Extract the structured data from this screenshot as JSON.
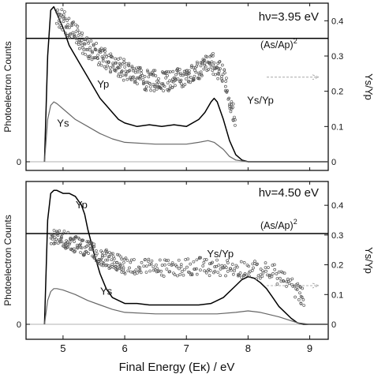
{
  "chart_data": [
    {
      "type": "scatter",
      "energy_annotation": "hν=3.95 eV",
      "ratio_label": "(As/Ap)",
      "ratio_exponent": "2",
      "ylabel_left": "Photoelectron Counts",
      "ylabel_right": "Ys/Yp",
      "xlim": [
        4.4,
        9.3
      ],
      "ylim_right": [
        0,
        0.45
      ],
      "right_ticks": [
        0,
        0.1,
        0.2,
        0.3,
        0.4
      ],
      "left_ticks": [
        "0"
      ],
      "horizontal_line_value": 0.35,
      "series": [
        {
          "name": "Yp",
          "label_at": [
            5.65,
            0.21
          ],
          "x": [
            4.7,
            4.75,
            4.8,
            4.85,
            4.9,
            5.0,
            5.1,
            5.2,
            5.3,
            5.4,
            5.5,
            5.6,
            5.7,
            5.8,
            5.9,
            6.0,
            6.2,
            6.4,
            6.6,
            6.8,
            7.0,
            7.2,
            7.3,
            7.4,
            7.45,
            7.5,
            7.6,
            7.7,
            7.8,
            7.9,
            8.0,
            8.5,
            9.3
          ],
          "y": [
            0.0,
            0.3,
            0.43,
            0.44,
            0.42,
            0.38,
            0.33,
            0.3,
            0.27,
            0.24,
            0.21,
            0.18,
            0.16,
            0.14,
            0.12,
            0.11,
            0.1,
            0.105,
            0.1,
            0.105,
            0.1,
            0.12,
            0.14,
            0.17,
            0.18,
            0.17,
            0.12,
            0.06,
            0.02,
            0.005,
            0.0,
            0.0,
            0.0
          ]
        },
        {
          "name": "Ys",
          "label_at": [
            5.0,
            0.1
          ],
          "x": [
            4.7,
            4.75,
            4.8,
            4.85,
            4.9,
            5.0,
            5.2,
            5.4,
            5.6,
            5.8,
            6.0,
            6.5,
            7.0,
            7.2,
            7.35,
            7.45,
            7.6,
            7.7,
            7.8,
            8.0,
            9.3
          ],
          "y": [
            0.0,
            0.12,
            0.16,
            0.17,
            0.165,
            0.15,
            0.12,
            0.1,
            0.08,
            0.065,
            0.055,
            0.05,
            0.05,
            0.055,
            0.06,
            0.055,
            0.035,
            0.015,
            0.005,
            0.0,
            0.0
          ]
        },
        {
          "name": "Ys/Yp",
          "label_at": [
            8.2,
            0.165
          ],
          "x": [
            4.9,
            5.0,
            5.1,
            5.2,
            5.3,
            5.4,
            5.5,
            5.6,
            5.7,
            5.8,
            5.9,
            6.0,
            6.1,
            6.2,
            6.3,
            6.4,
            6.5,
            6.6,
            6.7,
            6.8,
            6.9,
            7.0,
            7.1,
            7.2,
            7.3,
            7.4,
            7.5,
            7.6,
            7.7,
            7.8
          ],
          "y": [
            0.41,
            0.4,
            0.38,
            0.36,
            0.34,
            0.32,
            0.31,
            0.3,
            0.29,
            0.28,
            0.27,
            0.26,
            0.25,
            0.24,
            0.235,
            0.23,
            0.23,
            0.23,
            0.23,
            0.235,
            0.24,
            0.24,
            0.25,
            0.26,
            0.27,
            0.28,
            0.27,
            0.25,
            0.18,
            0.1
          ]
        }
      ]
    },
    {
      "type": "scatter",
      "energy_annotation": "hν=4.50 eV",
      "ratio_label": "(As/Ap)",
      "ratio_exponent": "2",
      "ylabel_left": "Photoelectron Counts",
      "ylabel_right": "Ys/Yp",
      "xlabel": "Final Energy (Eᴋ) / eV",
      "xlim": [
        4.4,
        9.3
      ],
      "ylim_right": [
        0,
        0.48
      ],
      "right_ticks": [
        0,
        0.1,
        0.2,
        0.3,
        0.4
      ],
      "left_ticks": [
        "0"
      ],
      "x_ticks": [
        5,
        6,
        7,
        8,
        9
      ],
      "horizontal_line_value": 0.305,
      "series": [
        {
          "name": "Yp",
          "label_at": [
            5.3,
            0.39
          ],
          "x": [
            4.7,
            4.75,
            4.8,
            4.85,
            4.9,
            5.0,
            5.1,
            5.2,
            5.3,
            5.35,
            5.4,
            5.5,
            5.6,
            5.7,
            5.8,
            6.0,
            6.2,
            6.4,
            6.6,
            6.8,
            7.0,
            7.2,
            7.4,
            7.6,
            7.8,
            7.9,
            8.0,
            8.1,
            8.2,
            8.3,
            8.4,
            8.5,
            8.6,
            8.7,
            8.8,
            8.9,
            9.3
          ],
          "y": [
            0.0,
            0.35,
            0.44,
            0.45,
            0.45,
            0.44,
            0.44,
            0.43,
            0.4,
            0.37,
            0.32,
            0.24,
            0.17,
            0.12,
            0.09,
            0.07,
            0.07,
            0.065,
            0.065,
            0.065,
            0.065,
            0.065,
            0.07,
            0.09,
            0.13,
            0.15,
            0.16,
            0.155,
            0.14,
            0.12,
            0.09,
            0.06,
            0.04,
            0.02,
            0.005,
            0.0,
            0.0
          ]
        },
        {
          "name": "Ys",
          "label_at": [
            5.7,
            0.1
          ],
          "x": [
            4.7,
            4.75,
            4.8,
            4.85,
            4.9,
            5.0,
            5.2,
            5.4,
            5.6,
            5.8,
            6.0,
            6.5,
            7.0,
            7.5,
            7.8,
            8.0,
            8.2,
            8.5,
            8.8,
            9.0,
            9.3
          ],
          "y": [
            0.0,
            0.08,
            0.11,
            0.12,
            0.12,
            0.115,
            0.1,
            0.08,
            0.065,
            0.05,
            0.04,
            0.035,
            0.035,
            0.035,
            0.04,
            0.045,
            0.04,
            0.025,
            0.005,
            0.0,
            0.0
          ]
        },
        {
          "name": "Ys/Yp",
          "label_at": [
            7.55,
            0.225
          ],
          "x": [
            4.8,
            4.9,
            5.0,
            5.1,
            5.2,
            5.3,
            5.4,
            5.5,
            5.6,
            5.7,
            5.8,
            5.9,
            6.0,
            6.2,
            6.4,
            6.6,
            6.8,
            7.0,
            7.2,
            7.4,
            7.6,
            7.8,
            8.0,
            8.2,
            8.4,
            8.6,
            8.8,
            8.9
          ],
          "y": [
            0.28,
            0.29,
            0.29,
            0.28,
            0.27,
            0.26,
            0.25,
            0.24,
            0.23,
            0.22,
            0.21,
            0.205,
            0.2,
            0.195,
            0.19,
            0.19,
            0.19,
            0.195,
            0.195,
            0.19,
            0.19,
            0.19,
            0.185,
            0.18,
            0.175,
            0.15,
            0.11,
            0.09
          ]
        }
      ]
    }
  ]
}
